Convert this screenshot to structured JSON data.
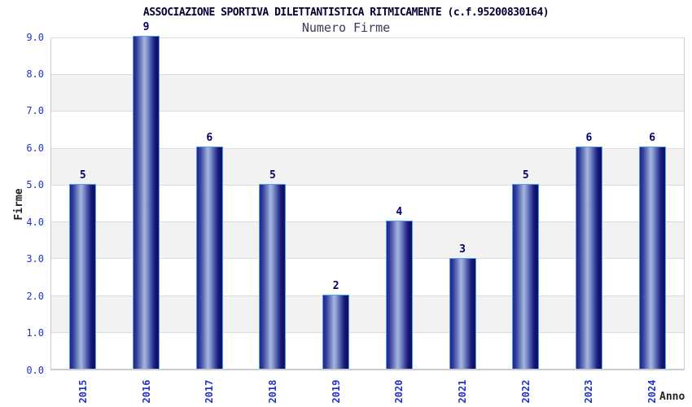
{
  "chart_data": {
    "type": "bar",
    "title": "ASSOCIAZIONE SPORTIVA DILETTANTISTICA RITMICAMENTE (c.f.95200830164)",
    "subtitle": "Numero Firme",
    "xlabel": "Anno",
    "ylabel": "Firme",
    "categories": [
      "2015",
      "2016",
      "2017",
      "2018",
      "2019",
      "2020",
      "2021",
      "2022",
      "2023",
      "2024"
    ],
    "values": [
      5,
      9,
      6,
      5,
      2,
      4,
      3,
      5,
      6,
      6
    ],
    "ylim": [
      0,
      9
    ],
    "ytick_step": 1,
    "yticks": [
      "0.0",
      "1.0",
      "2.0",
      "3.0",
      "4.0",
      "5.0",
      "6.0",
      "7.0",
      "8.0",
      "9.0"
    ],
    "grid": "horizontal alternating bands, gridline at each integer",
    "legend": "none",
    "colors": {
      "bar_dark": "#16166e",
      "bar_highlight": "#a6b3de",
      "bar_border": "#4d9ef0",
      "tick_label": "#2233cc",
      "value_label": "#000066",
      "title_text": "#000033",
      "subtitle_text": "#3a3a55",
      "axis_title_text": "#222222",
      "band_gray": "#f2f2f2",
      "band_white": "#ffffff",
      "gridline": "#dcdcdc",
      "plot_border": "#cccccc"
    }
  }
}
